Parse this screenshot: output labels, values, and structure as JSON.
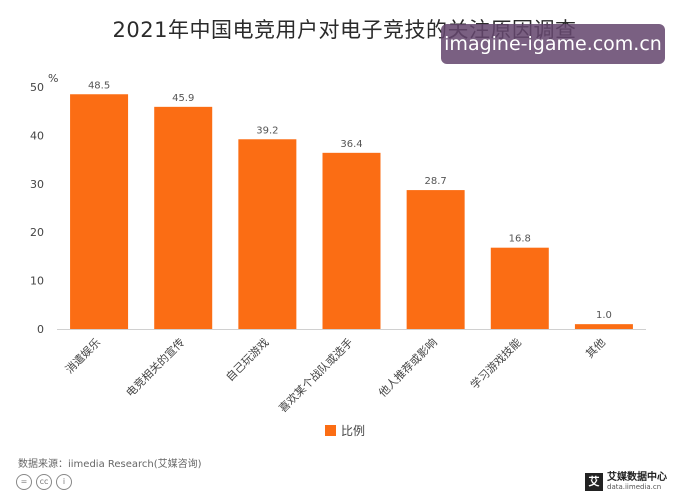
{
  "title": "2021年中国电竞用户对电子竞技的关注原因调查",
  "watermark": "imagine-igame.com.cn",
  "chart_data": {
    "type": "bar",
    "categories": [
      "消遣娱乐",
      "电竞相关的宣传",
      "自己玩游戏",
      "喜欢某个战队或选手",
      "他人推荐或影响",
      "学习游戏技能",
      "其他"
    ],
    "series": [
      {
        "name": "比例",
        "values": [
          48.5,
          45.9,
          39.2,
          36.4,
          28.7,
          16.8,
          1.0
        ]
      }
    ],
    "value_labels": [
      "48.5",
      "45.9",
      "39.2",
      "36.4",
      "28.7",
      "16.8",
      "1.0"
    ],
    "yunit": "%",
    "ylim": [
      0,
      50
    ],
    "yticks": [
      "0",
      "10",
      "20",
      "30",
      "40",
      "50"
    ],
    "grid": false,
    "legend_position": "bottom-center",
    "bar_color": "#fb6d14"
  },
  "legend_label": "比例",
  "source": "数据来源：iimedia Research(艾媒咨询)",
  "logo": {
    "mark": "艾",
    "name": "艾媒数据中心",
    "url": "data.iimedia.cn"
  }
}
